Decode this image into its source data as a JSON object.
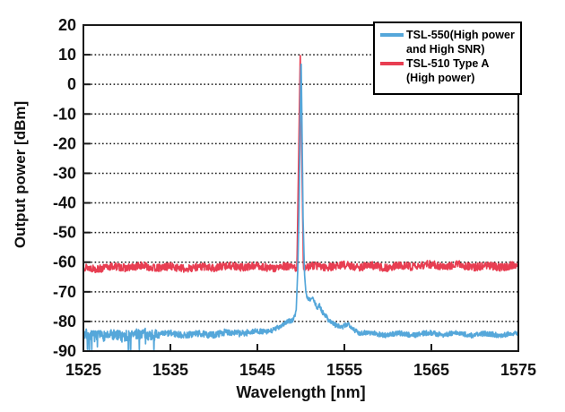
{
  "chart_data": {
    "type": "line",
    "title": "",
    "xlabel": "Wavelength [nm]",
    "ylabel": "Output power [dBm]",
    "xlim": [
      1525,
      1575
    ],
    "ylim": [
      -90,
      20
    ],
    "xticks": [
      1525,
      1535,
      1545,
      1555,
      1565,
      1575
    ],
    "yticks": [
      20,
      10,
      0,
      -10,
      -20,
      -30,
      -40,
      -50,
      -60,
      -70,
      -80,
      -90
    ],
    "grid": {
      "show": true,
      "style": "dotted",
      "color": "#161616"
    },
    "axis_color": "#1a1a1a",
    "legend": {
      "position": "top-right",
      "border_color": "#000000",
      "bg_color": "#ffffff",
      "items": [
        {
          "label_line1": "TSL-550(High power",
          "label_line2": "and High SNR)",
          "color": "#55a7da"
        },
        {
          "label_line1": "TSL-510 Type A",
          "label_line2": "(High power)",
          "color": "#e83e52"
        }
      ]
    },
    "series": [
      {
        "name": "TSL-550 (High power and High SNR)",
        "color": "#55a7da",
        "peak_nm": 1550.0,
        "peak_dbm": 10.3,
        "noise_floor_dbm": -84,
        "noise_amp_db": 0.85,
        "wobble_db": 0.5,
        "seed": 7,
        "zorder": 2,
        "noise_regions": [
          {
            "from": 1525,
            "to": 1533.5,
            "mult": 2.2
          },
          {
            "from": 1533.5,
            "to": 1544,
            "mult": 1.3
          }
        ],
        "down_spikes": {
          "from": 1525,
          "to": 1533.8,
          "prob": 0.1,
          "depth_db": 6.5
        },
        "envelope": [
          [
            1525,
            -84.4
          ],
          [
            1529,
            -84.8
          ],
          [
            1531,
            -84.6
          ],
          [
            1533.5,
            -84.4
          ],
          [
            1536,
            -84.1
          ],
          [
            1539,
            -84.3
          ],
          [
            1542,
            -84.0
          ],
          [
            1544.5,
            -83.8
          ],
          [
            1546,
            -83.3
          ],
          [
            1547,
            -82.4
          ],
          [
            1548,
            -81.0
          ],
          [
            1548.6,
            -80.0
          ],
          [
            1549.1,
            -79.2
          ],
          [
            1549.45,
            -76.5
          ],
          [
            1549.65,
            -62
          ],
          [
            1549.8,
            -40
          ],
          [
            1549.92,
            -12
          ],
          [
            1550.02,
            10.3
          ],
          [
            1550.12,
            -12
          ],
          [
            1550.25,
            -45
          ],
          [
            1550.42,
            -64
          ],
          [
            1550.58,
            -70.5
          ],
          [
            1550.8,
            -72.5
          ],
          [
            1551.1,
            -72.8
          ],
          [
            1551.35,
            -72.2
          ],
          [
            1551.6,
            -74.0
          ],
          [
            1551.9,
            -75.8
          ],
          [
            1552.15,
            -74.6
          ],
          [
            1552.45,
            -76.8
          ],
          [
            1552.8,
            -77.6
          ],
          [
            1553.1,
            -79.0
          ],
          [
            1553.5,
            -80.2
          ],
          [
            1554,
            -81.5
          ],
          [
            1554.7,
            -82.6
          ],
          [
            1555.5,
            -80.9
          ],
          [
            1555.9,
            -82.0
          ],
          [
            1556.6,
            -83.6
          ],
          [
            1558,
            -84.0
          ],
          [
            1561,
            -84.2
          ],
          [
            1564,
            -84.3
          ],
          [
            1568,
            -84.3
          ],
          [
            1572,
            -84.2
          ],
          [
            1575,
            -84.2
          ]
        ]
      },
      {
        "name": "TSL-510 Type A (High power)",
        "color": "#e83e52",
        "peak_nm": 1549.93,
        "peak_dbm": 10.0,
        "noise_floor_dbm": -61.6,
        "noise_amp_db": 1.3,
        "wobble_db": 0.55,
        "seed": 13,
        "zorder": 1,
        "noise_regions": [],
        "down_spikes": null,
        "envelope": [
          [
            1525,
            -61.8
          ],
          [
            1535,
            -61.7
          ],
          [
            1545,
            -61.6
          ],
          [
            1549.55,
            -61.6
          ],
          [
            1549.93,
            10.0
          ],
          [
            1550.3,
            -61.6
          ],
          [
            1560,
            -61.3
          ],
          [
            1568,
            -61.2
          ],
          [
            1575,
            -61.3
          ]
        ]
      }
    ],
    "points_per_series": 1400
  }
}
